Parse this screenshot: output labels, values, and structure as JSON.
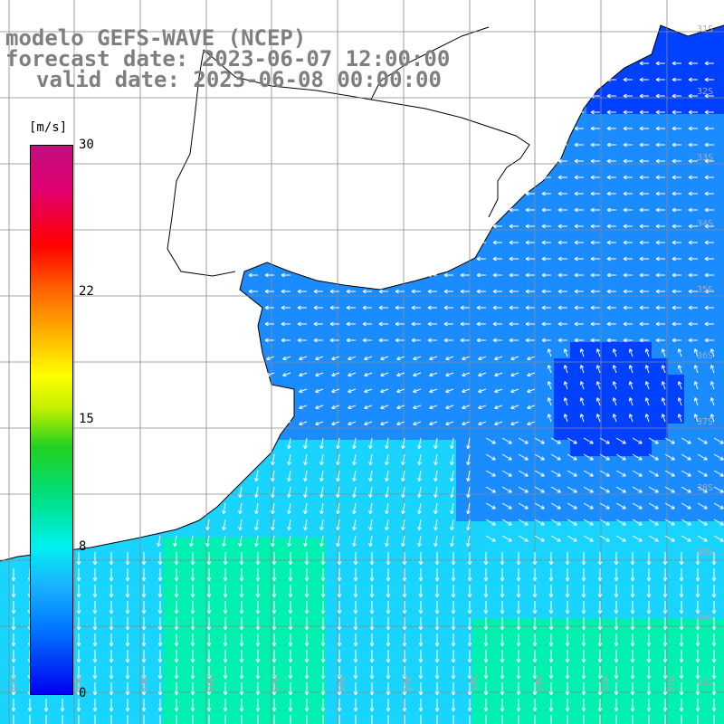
{
  "title": {
    "line1": "modelo GEFS-WAVE (NCEP)",
    "line2": "forecast date: 2023-06-07 12:00:00",
    "line3": "valid date: 2023-06-08 00:00:00"
  },
  "colorbar": {
    "unit": "[m/s]",
    "ticks": [
      {
        "label": "30",
        "value": 30
      },
      {
        "label": "22",
        "value": 22
      },
      {
        "label": "15",
        "value": 15
      },
      {
        "label": "8",
        "value": 8
      },
      {
        "label": "0",
        "value": 0
      }
    ],
    "min": 0,
    "max": 30
  },
  "map": {
    "lat_labels": [
      "31S",
      "32S",
      "33S",
      "34S",
      "35S",
      "36S",
      "37S",
      "38S",
      "39S",
      "40S",
      "41S"
    ],
    "lon_labels": [
      "61W",
      "60W",
      "59W",
      "58W",
      "57W",
      "56W",
      "55W",
      "54W",
      "53W",
      "52W",
      "51W"
    ],
    "colors": {
      "land": "#ffffff",
      "coast": "#000000",
      "grid": "#888888",
      "arrow": "#ffffff",
      "deep_blue": "#0040ff",
      "mid_blue": "#1a8cff",
      "cyan": "#19d4ff",
      "green_cyan": "#00f0b0"
    }
  }
}
